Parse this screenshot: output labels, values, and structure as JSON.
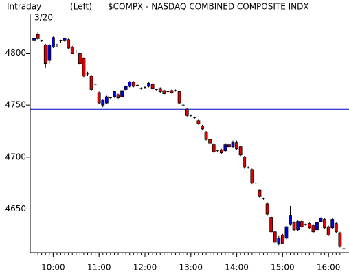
{
  "chart_data": {
    "type": "candlestick",
    "title": "$COMPX - NASDAQ COMBINED COMPOSITE INDX",
    "period": "Intraday",
    "date": "3/20",
    "axis_side": "(Left)",
    "x": [
      575,
      580,
      585,
      590,
      595,
      600,
      605,
      610,
      615,
      620,
      625,
      630,
      635,
      640,
      645,
      650,
      655,
      660,
      665,
      670,
      675,
      680,
      685,
      690,
      695,
      700,
      705,
      710,
      715,
      720,
      725,
      730,
      735,
      740,
      745,
      750,
      755,
      760,
      765,
      770,
      775,
      780,
      785,
      790,
      795,
      800,
      805,
      810,
      815,
      820,
      825,
      830,
      835,
      840,
      845,
      850,
      855,
      860,
      865,
      870,
      875,
      880,
      885,
      890,
      895,
      900,
      905,
      910,
      915,
      920,
      925,
      930,
      935,
      940,
      945,
      950,
      955,
      960,
      965,
      970,
      975,
      980
    ],
    "open": [
      4812,
      4818,
      4812,
      4808,
      4793,
      4806,
      4808,
      4812,
      4812,
      4813,
      4806,
      4802,
      4800,
      4795,
      4780,
      4778,
      4770,
      4762,
      4750,
      4752,
      4757,
      4758,
      4760,
      4758,
      4765,
      4768,
      4772,
      4769,
      4766,
      4767,
      4768,
      4770,
      4765,
      4766,
      4764,
      4763,
      4764,
      4764,
      4763,
      4750,
      4746,
      4740,
      4738,
      4735,
      4730,
      4724,
      4717,
      4712,
      4706,
      4707,
      4706,
      4712,
      4710,
      4714,
      4710,
      4700,
      4690,
      4688,
      4675,
      4668,
      4660,
      4655,
      4642,
      4628,
      4617,
      4625,
      4622,
      4635,
      4637,
      4630,
      4638,
      4635,
      4636,
      4634,
      4630,
      4638,
      4640,
      4633,
      4632,
      4636,
      4627,
      4612
    ],
    "high": [
      4815,
      4820,
      4813,
      4809,
      4809,
      4816,
      4809,
      4813,
      4815,
      4814,
      4807,
      4803,
      4801,
      4796,
      4782,
      4779,
      4771,
      4763,
      4756,
      4759,
      4758,
      4764,
      4761,
      4765,
      4769,
      4773,
      4773,
      4770,
      4767,
      4768,
      4772,
      4771,
      4766,
      4767,
      4765,
      4764,
      4765,
      4765,
      4764,
      4751,
      4747,
      4741,
      4739,
      4736,
      4731,
      4725,
      4718,
      4713,
      4707,
      4708,
      4713,
      4713,
      4716,
      4716,
      4711,
      4701,
      4691,
      4689,
      4676,
      4669,
      4661,
      4656,
      4643,
      4629,
      4624,
      4626,
      4634,
      4653,
      4638,
      4639,
      4639,
      4636,
      4637,
      4635,
      4638,
      4642,
      4641,
      4634,
      4641,
      4637,
      4628,
      4613
    ],
    "low": [
      4810,
      4813,
      4811,
      4786,
      4790,
      4805,
      4806,
      4810,
      4811,
      4804,
      4799,
      4800,
      4789,
      4777,
      4778,
      4764,
      4768,
      4751,
      4748,
      4751,
      4756,
      4757,
      4756,
      4757,
      4764,
      4767,
      4767,
      4768,
      4765,
      4766,
      4767,
      4765,
      4764,
      4762,
      4760,
      4762,
      4761,
      4763,
      4751,
      4749,
      4739,
      4739,
      4737,
      4731,
      4726,
      4716,
      4712,
      4704,
      4705,
      4703,
      4705,
      4709,
      4709,
      4707,
      4701,
      4689,
      4689,
      4674,
      4674,
      4661,
      4659,
      4644,
      4627,
      4617,
      4615,
      4616,
      4621,
      4634,
      4629,
      4629,
      4632,
      4634,
      4631,
      4627,
      4629,
      4637,
      4631,
      4624,
      4631,
      4627,
      4613,
      4611
    ],
    "close": [
      4814,
      4814,
      4812,
      4790,
      4808,
      4815,
      4808,
      4812,
      4814,
      4805,
      4800,
      4802,
      4790,
      4778,
      4780,
      4765,
      4770,
      4752,
      4755,
      4758,
      4757,
      4763,
      4757,
      4764,
      4768,
      4772,
      4768,
      4769,
      4766,
      4767,
      4771,
      4766,
      4765,
      4763,
      4761,
      4763,
      4762,
      4764,
      4752,
      4750,
      4740,
      4740,
      4738,
      4732,
      4727,
      4717,
      4713,
      4705,
      4706,
      4704,
      4712,
      4710,
      4714,
      4708,
      4702,
      4690,
      4690,
      4675,
      4675,
      4662,
      4660,
      4645,
      4628,
      4618,
      4622,
      4617,
      4633,
      4644,
      4630,
      4638,
      4633,
      4635,
      4632,
      4628,
      4637,
      4641,
      4632,
      4625,
      4640,
      4628,
      4614,
      4612
    ],
    "up_color": "#0000e0",
    "down_color": "#e00000",
    "reference_line": 4746,
    "reference_color": "#0000c0",
    "ylim": [
      4608,
      4838
    ],
    "yticks": [
      4650,
      4700,
      4750,
      4800
    ],
    "xlim": [
      570,
      985
    ],
    "xticks": [
      {
        "value": 600,
        "label": "10:00"
      },
      {
        "value": 660,
        "label": "11:00"
      },
      {
        "value": 720,
        "label": "12:00"
      },
      {
        "value": 780,
        "label": "13:00"
      },
      {
        "value": 840,
        "label": "14:00"
      },
      {
        "value": 900,
        "label": "15:00"
      },
      {
        "value": 960,
        "label": "16:00"
      }
    ]
  }
}
